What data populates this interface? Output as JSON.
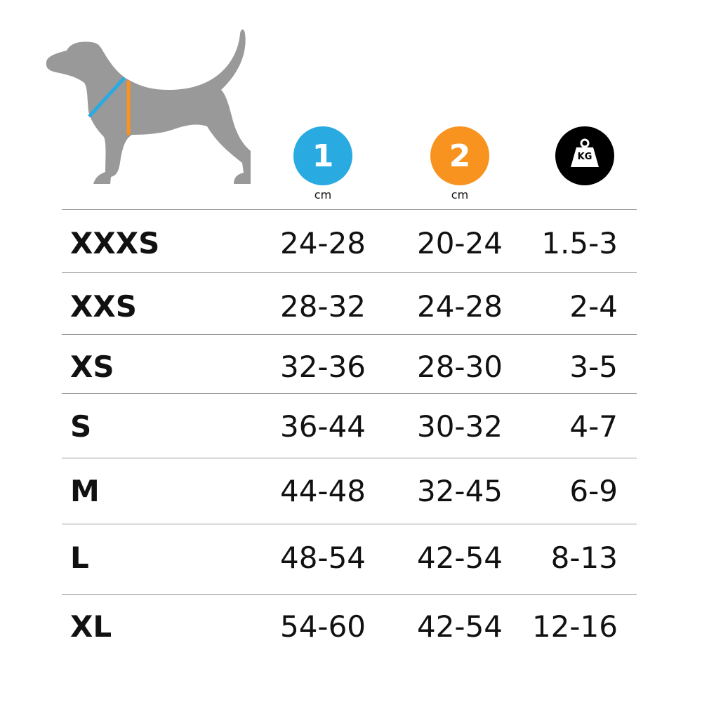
{
  "header": {
    "measure1": {
      "label": "1",
      "unit": "cm",
      "color": "#29abe2"
    },
    "measure2": {
      "label": "2",
      "unit": "cm",
      "color": "#f7931e"
    },
    "weight": {
      "label": "KG",
      "icon": "weight-kg-icon",
      "color": "#000000"
    }
  },
  "dog": {
    "color": "#999999",
    "icon": "dog-silhouette"
  },
  "rows": [
    {
      "size": "XXXS",
      "m1": "24-28",
      "m2": "20-24",
      "kg": "1.5-3"
    },
    {
      "size": "XXS",
      "m1": "28-32",
      "m2": "24-28",
      "kg": "2-4"
    },
    {
      "size": "XS",
      "m1": "32-36",
      "m2": "28-30",
      "kg": "3-5"
    },
    {
      "size": "S",
      "m1": "36-44",
      "m2": "30-32",
      "kg": "4-7"
    },
    {
      "size": "M",
      "m1": "44-48",
      "m2": "32-45",
      "kg": "6-9"
    },
    {
      "size": "L",
      "m1": "48-54",
      "m2": "42-54",
      "kg": "8-13"
    },
    {
      "size": "XL",
      "m1": "54-60",
      "m2": "42-54",
      "kg": "12-16"
    }
  ]
}
